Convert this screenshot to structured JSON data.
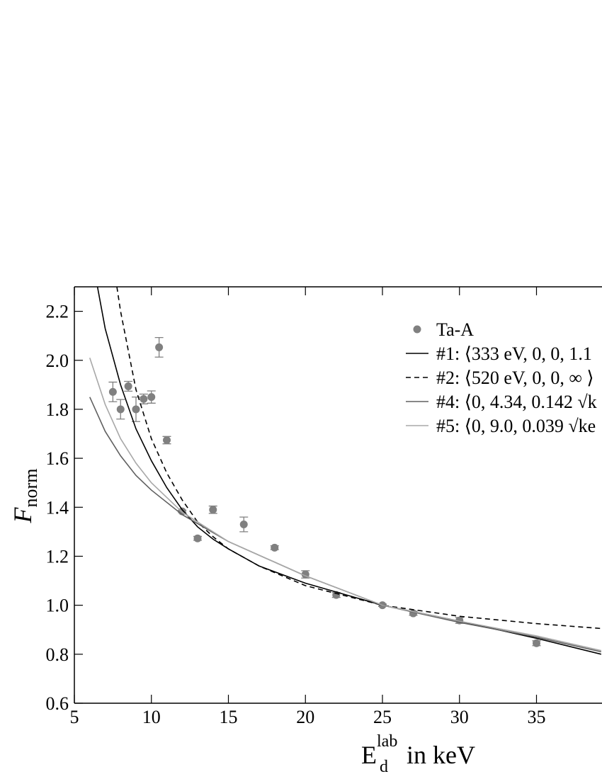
{
  "chart_data": {
    "type": "scatter",
    "ylabel": {
      "base": "F",
      "sub": "norm"
    },
    "xlabel": {
      "base": "E",
      "sub": "d",
      "sup": "lab",
      "rest": "in keV"
    },
    "xlim": [
      5,
      39.2
    ],
    "ylim": [
      0.6,
      2.3
    ],
    "xticks": [
      5,
      10,
      15,
      20,
      25,
      30,
      35
    ],
    "yticks": [
      {
        "value": 0.6,
        "label": "0.6"
      },
      {
        "value": 0.8,
        "label": "0.8"
      },
      {
        "value": 1.0,
        "label": "1.0"
      },
      {
        "value": 1.2,
        "label": "1.2"
      },
      {
        "value": 1.4,
        "label": "1.4"
      },
      {
        "value": 1.6,
        "label": "1.6"
      },
      {
        "value": 1.8,
        "label": "1.8"
      },
      {
        "value": 2.0,
        "label": "2.0"
      },
      {
        "value": 2.2,
        "label": "2.2"
      }
    ],
    "legend": "upper right",
    "series": [
      {
        "name": "Ta-A",
        "style": "markers",
        "color": "#808080",
        "x": [
          7.5,
          8,
          8.5,
          9,
          9.5,
          10,
          10.5,
          11,
          12,
          13,
          14,
          16,
          18,
          20,
          22,
          25,
          27,
          30,
          35
        ],
        "values": [
          1.871,
          1.8,
          1.894,
          1.8,
          1.842,
          1.85,
          2.053,
          1.674,
          1.383,
          1.273,
          1.39,
          1.33,
          1.235,
          1.126,
          1.042,
          1.0,
          0.967,
          0.938,
          0.845
        ],
        "errors": [
          0.04,
          0.04,
          0.02,
          0.05,
          0.02,
          0.025,
          0.04,
          0.015,
          0.005,
          0.008,
          0.015,
          0.03,
          0.008,
          0.015,
          0.01,
          0.005,
          0.008,
          0.012,
          0.01
        ]
      },
      {
        "name": "#1: ⟨333 eV, 0, 0, 1.1",
        "style": "solid",
        "color": "#000000",
        "x": [
          6.5,
          7,
          8,
          9,
          10,
          11,
          12,
          13,
          14,
          15,
          17,
          20,
          25,
          30,
          35,
          39.2
        ],
        "values": [
          2.3,
          2.13,
          1.9,
          1.72,
          1.59,
          1.48,
          1.39,
          1.32,
          1.27,
          1.23,
          1.16,
          1.09,
          1.0,
          0.935,
          0.865,
          0.8
        ]
      },
      {
        "name": "#2: ⟨520 eV, 0, 0, ∞ ⟩",
        "style": "dashed",
        "color": "#000000",
        "x": [
          7.76,
          8,
          9,
          10,
          11,
          12,
          13,
          14,
          15,
          17,
          20,
          25,
          30,
          35,
          39.2
        ],
        "values": [
          2.3,
          2.2,
          1.88,
          1.68,
          1.54,
          1.43,
          1.34,
          1.28,
          1.23,
          1.16,
          1.08,
          1.0,
          0.955,
          0.925,
          0.905
        ]
      },
      {
        "name": "#4: ⟨0, 4.34, 0.142 √k",
        "style": "solid",
        "color": "#606060",
        "x": [
          6,
          7,
          8,
          9,
          10,
          12,
          15,
          20,
          25,
          30,
          35,
          39.2
        ],
        "values": [
          1.85,
          1.71,
          1.61,
          1.53,
          1.47,
          1.37,
          1.26,
          1.12,
          1.0,
          0.93,
          0.87,
          0.81
        ]
      },
      {
        "name": "#5: ⟨0, 9.0, 0.039 √ke",
        "style": "solid",
        "color": "#a8a8a8",
        "x": [
          6,
          7,
          8,
          9,
          10,
          12,
          15,
          20,
          25,
          30,
          35,
          39.2
        ],
        "values": [
          2.01,
          1.82,
          1.68,
          1.58,
          1.5,
          1.38,
          1.26,
          1.12,
          1.0,
          0.935,
          0.875,
          0.815
        ]
      }
    ]
  }
}
